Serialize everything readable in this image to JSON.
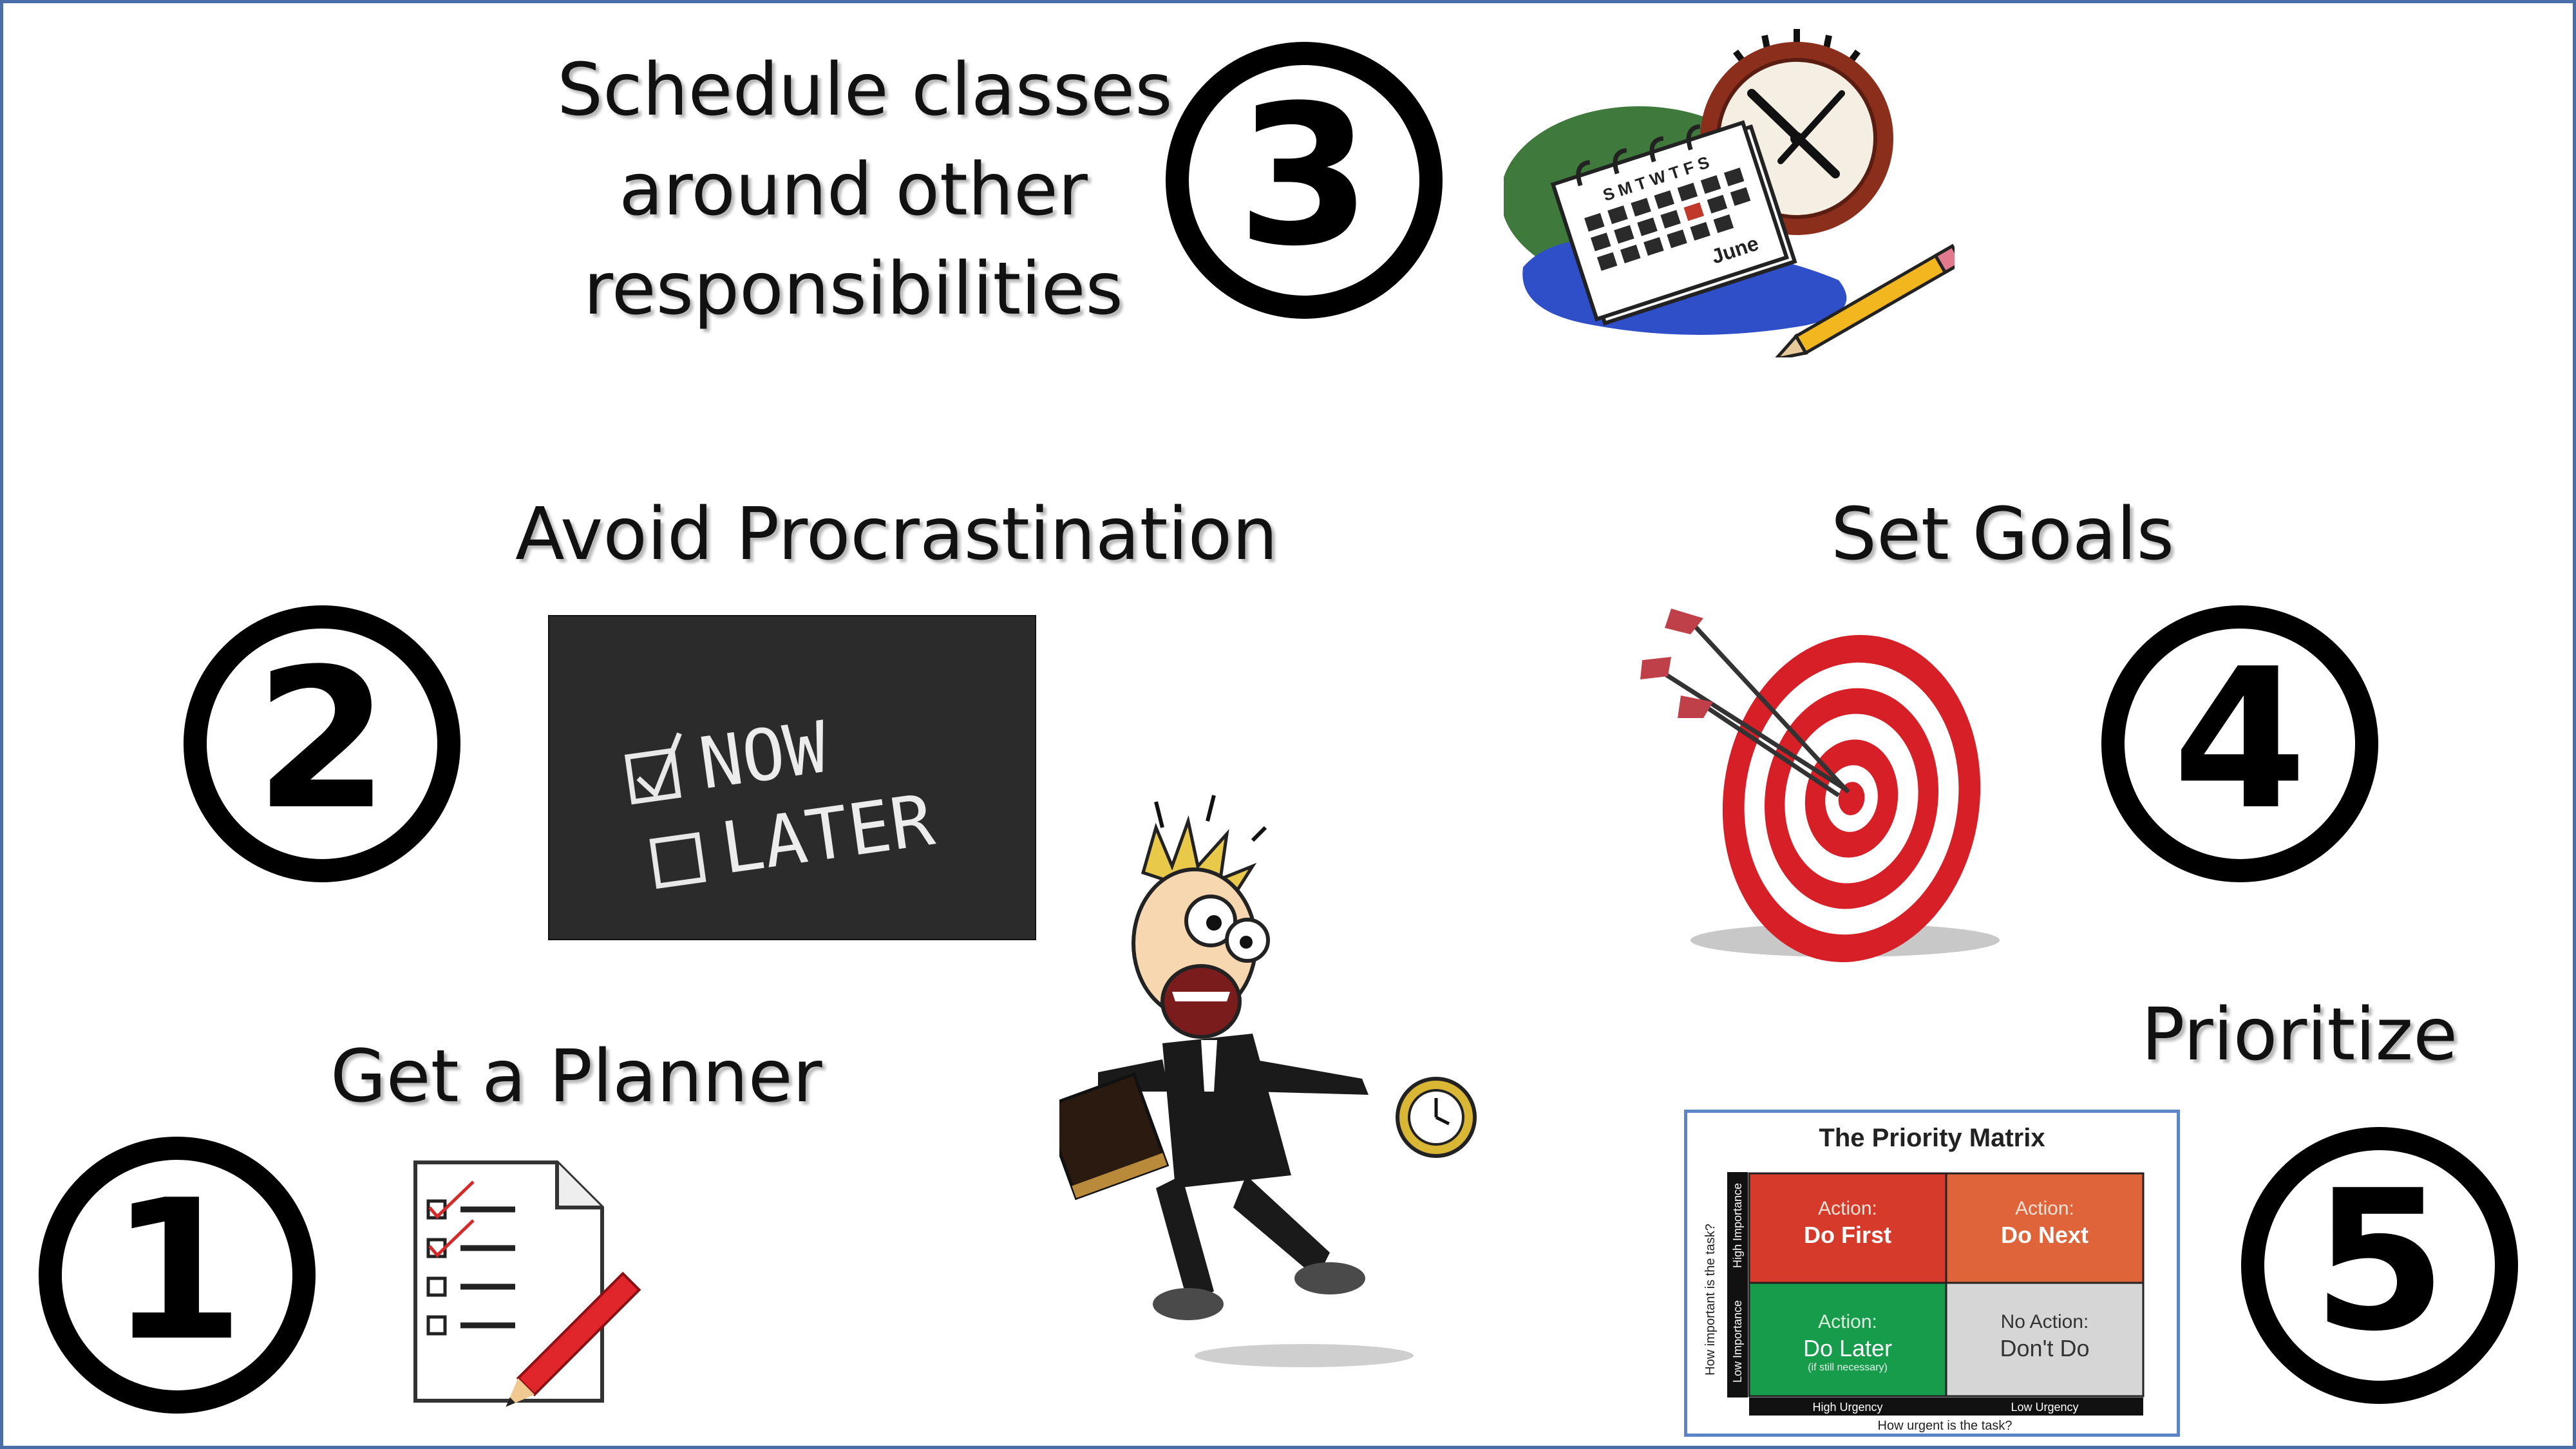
{
  "tips": {
    "schedule": {
      "number": "3",
      "lines": [
        "Schedule classes",
        "around other",
        "responsibilities"
      ]
    },
    "procrastination": {
      "number": "2",
      "label": "Avoid Procrastination"
    },
    "goals": {
      "number": "4",
      "label": "Set Goals"
    },
    "planner": {
      "number": "1",
      "label": "Get a Planner"
    },
    "prioritize": {
      "number": "5",
      "label": "Prioritize"
    }
  },
  "calendar": {
    "days": "S M T W T F S",
    "month": "June"
  },
  "chalkboard": {
    "now": "NOW",
    "later": "LATER"
  },
  "matrix": {
    "title": "The Priority Matrix",
    "y_axis": "How important is the task?",
    "y_high": "High Importance",
    "y_low": "Low Importance",
    "x_axis": "How urgent is the task?",
    "x_high": "High Urgency",
    "x_low": "Low Urgency",
    "cells": [
      {
        "top": "Action:",
        "main": "Do First",
        "sub": "",
        "color": "#d63a2a"
      },
      {
        "top": "Action:",
        "main": "Do Next",
        "sub": "",
        "color": "#e0643a"
      },
      {
        "top": "Action:",
        "main": "Do Later",
        "sub": "(if still necessary)",
        "color": "#169c4a"
      },
      {
        "top": "No Action:",
        "main": "Don't Do",
        "sub": "",
        "color": "#d6d6d6"
      }
    ]
  },
  "colors": {
    "border": "#4a6ea9",
    "target_red": "#d61f26",
    "chalkboard": "#2b2b2b"
  }
}
